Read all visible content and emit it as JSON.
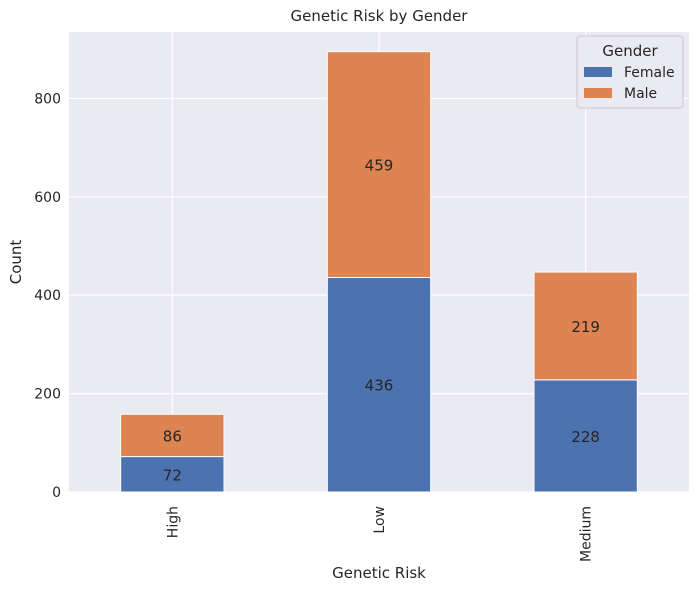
{
  "chart_data": {
    "type": "bar",
    "stacked": true,
    "title": "Genetic Risk by Gender",
    "xlabel": "Genetic Risk",
    "ylabel": "Count",
    "categories": [
      "High",
      "Low",
      "Medium"
    ],
    "series": [
      {
        "name": "Female",
        "values": [
          72,
          436,
          228
        ],
        "color": "#4c72b0"
      },
      {
        "name": "Male",
        "values": [
          86,
          459,
          219
        ],
        "color": "#dd8452"
      }
    ],
    "data_labels": {
      "Female": [
        "72",
        "436",
        "228"
      ],
      "Male": [
        "86",
        "459",
        "219"
      ]
    },
    "ylim": [
      0,
      935
    ],
    "yticks": [
      "0",
      "200",
      "400",
      "600",
      "800"
    ],
    "grid": true,
    "legend": {
      "title": "Gender",
      "position": "top-right"
    },
    "background": "#eaeaf2"
  }
}
